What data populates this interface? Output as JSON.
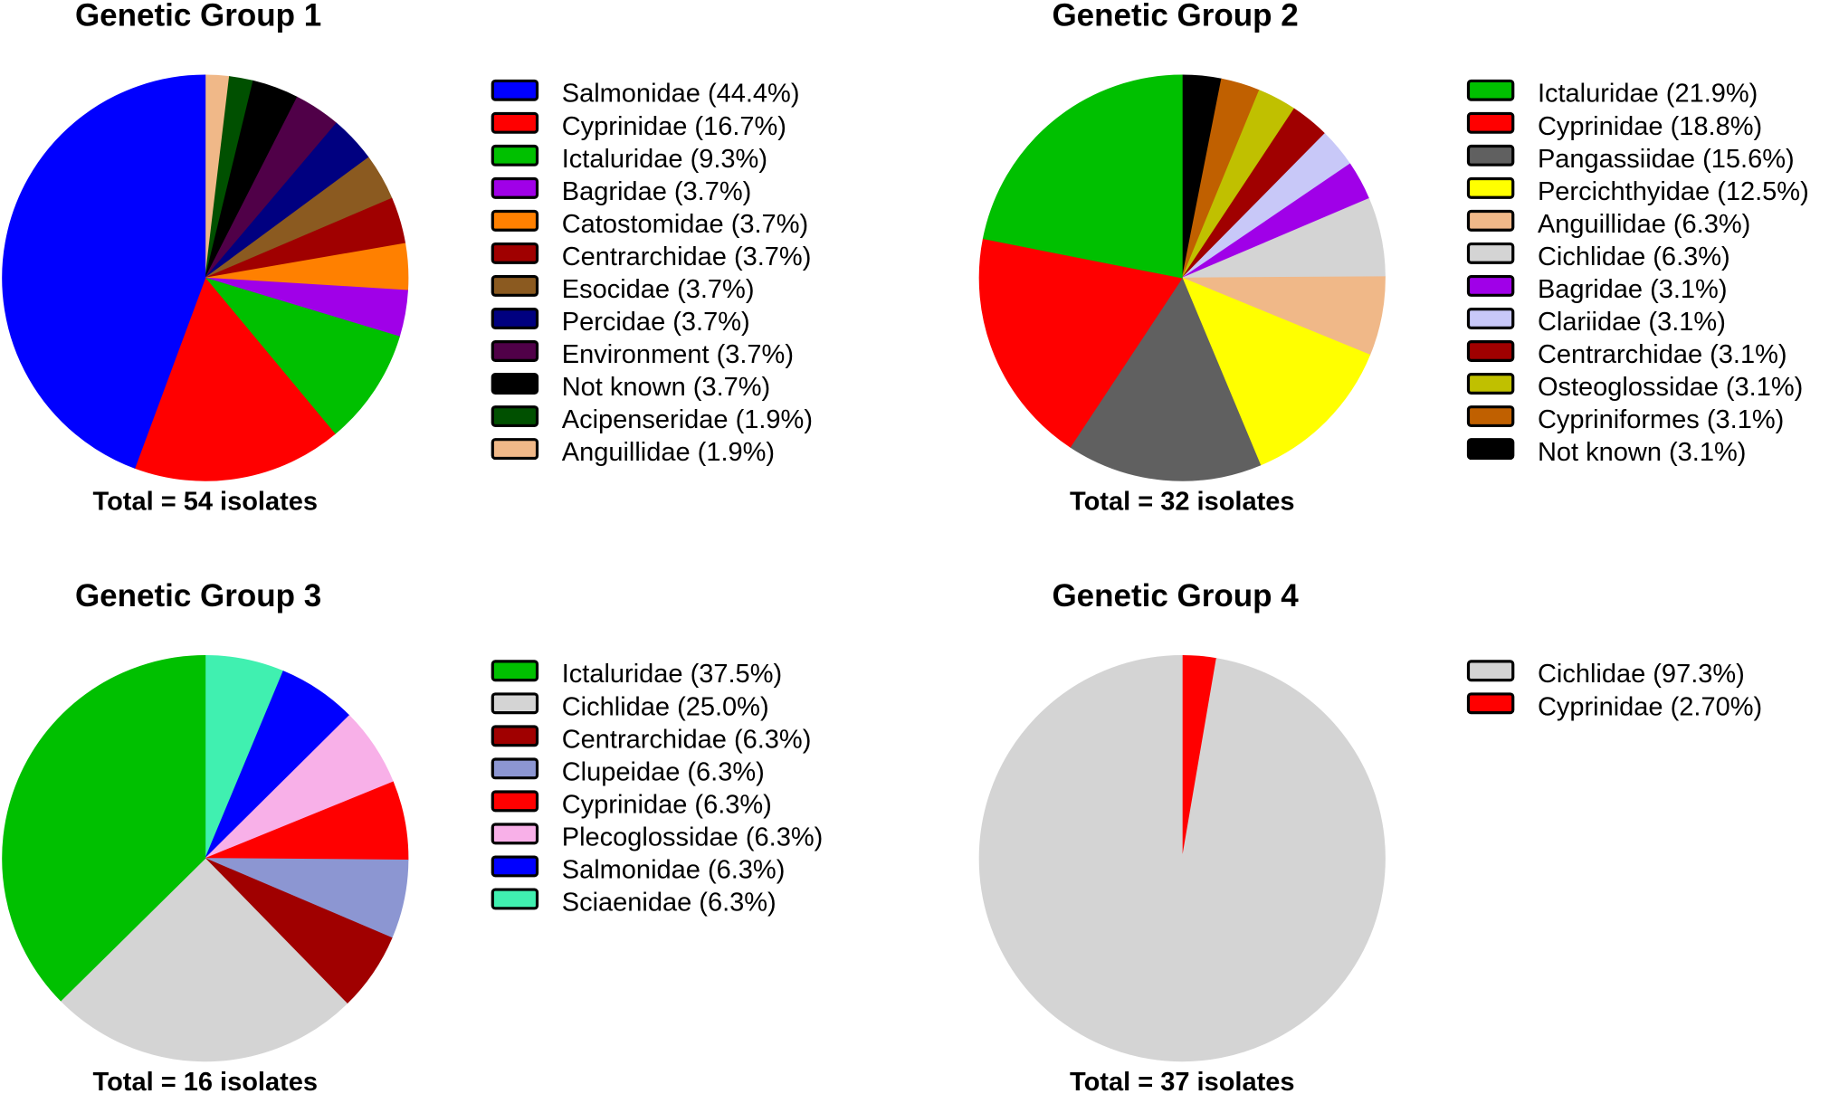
{
  "chart_data": [
    {
      "type": "pie",
      "title": "Genetic Group 1",
      "footer": "Total = 54 isolates",
      "slices": [
        {
          "name": "Salmonidae",
          "value": 44.4,
          "legend": "Salmonidae (44.4%)",
          "color": "#0000FF"
        },
        {
          "name": "Cyprinidae",
          "value": 16.7,
          "legend": "Cyprinidae (16.7%)",
          "color": "#FF0000"
        },
        {
          "name": "Ictaluridae",
          "value": 9.3,
          "legend": "Ictaluridae (9.3%)",
          "color": "#00C000"
        },
        {
          "name": "Bagridae",
          "value": 3.7,
          "legend": "Bagridae (3.7%)",
          "color": "#A000E8"
        },
        {
          "name": "Catostomidae",
          "value": 3.7,
          "legend": "Catostomidae (3.7%)",
          "color": "#FF8000"
        },
        {
          "name": "Centrarchidae",
          "value": 3.7,
          "legend": "Centrarchidae (3.7%)",
          "color": "#A00000"
        },
        {
          "name": "Esocidae",
          "value": 3.7,
          "legend": "Esocidae (3.7%)",
          "color": "#8B5A20"
        },
        {
          "name": "Percidae",
          "value": 3.7,
          "legend": "Percidae (3.7%)",
          "color": "#000080"
        },
        {
          "name": "Environment",
          "value": 3.7,
          "legend": "Environment (3.7%)",
          "color": "#500048"
        },
        {
          "name": "Not known",
          "value": 3.7,
          "legend": "Not known (3.7%)",
          "color": "#000000"
        },
        {
          "name": "Acipenseridae",
          "value": 1.9,
          "legend": "Acipenseridae (1.9%)",
          "color": "#005000"
        },
        {
          "name": "Anguillidae",
          "value": 1.9,
          "legend": "Anguillidae (1.9%)",
          "color": "#F0B888"
        }
      ]
    },
    {
      "type": "pie",
      "title": "Genetic Group 2",
      "footer": "Total = 32 isolates",
      "slices": [
        {
          "name": "Ictaluridae",
          "value": 21.9,
          "legend": "Ictaluridae (21.9%)",
          "color": "#00C000"
        },
        {
          "name": "Cyprinidae",
          "value": 18.8,
          "legend": "Cyprinidae (18.8%)",
          "color": "#FF0000"
        },
        {
          "name": "Pangassiidae",
          "value": 15.6,
          "legend": "Pangassiidae (15.6%)",
          "color": "#606060"
        },
        {
          "name": "Percichthyidae",
          "value": 12.5,
          "legend": "Percichthyidae (12.5%)",
          "color": "#FFFF00"
        },
        {
          "name": "Anguillidae",
          "value": 6.3,
          "legend": "Anguillidae (6.3%)",
          "color": "#F0B888"
        },
        {
          "name": "Cichlidae",
          "value": 6.3,
          "legend": "Cichlidae (6.3%)",
          "color": "#D4D4D4"
        },
        {
          "name": "Bagridae",
          "value": 3.1,
          "legend": "Bagridae (3.1%)",
          "color": "#A000E8"
        },
        {
          "name": "Clariidae",
          "value": 3.1,
          "legend": "Clariidae (3.1%)",
          "color": "#C8C8F8"
        },
        {
          "name": "Centrarchidae",
          "value": 3.1,
          "legend": "Centrarchidae (3.1%)",
          "color": "#A00000"
        },
        {
          "name": "Osteoglossidae",
          "value": 3.1,
          "legend": "Osteoglossidae (3.1%)",
          "color": "#C0C000"
        },
        {
          "name": "Cypriniformes",
          "value": 3.1,
          "legend": "Cypriniformes (3.1%)",
          "color": "#C06000"
        },
        {
          "name": "Not known",
          "value": 3.1,
          "legend": "Not known (3.1%)",
          "color": "#000000"
        }
      ]
    },
    {
      "type": "pie",
      "title": "Genetic Group 3",
      "footer": "Total = 16 isolates",
      "slices": [
        {
          "name": "Ictaluridae",
          "value": 37.5,
          "legend": "Ictaluridae (37.5%)",
          "color": "#00C000"
        },
        {
          "name": "Cichlidae",
          "value": 25.0,
          "legend": "Cichlidae (25.0%)",
          "color": "#D4D4D4"
        },
        {
          "name": "Centrarchidae",
          "value": 6.3,
          "legend": "Centrarchidae (6.3%)",
          "color": "#A00000"
        },
        {
          "name": "Clupeidae",
          "value": 6.3,
          "legend": "Clupeidae (6.3%)",
          "color": "#8C96D2"
        },
        {
          "name": "Cyprinidae",
          "value": 6.3,
          "legend": "Cyprinidae (6.3%)",
          "color": "#FF0000"
        },
        {
          "name": "Plecoglossidae",
          "value": 6.3,
          "legend": "Plecoglossidae (6.3%)",
          "color": "#F8B0E8"
        },
        {
          "name": "Salmonidae",
          "value": 6.3,
          "legend": "Salmonidae (6.3%)",
          "color": "#0000FF"
        },
        {
          "name": "Sciaenidae",
          "value": 6.3,
          "legend": "Sciaenidae (6.3%)",
          "color": "#40F0B0"
        }
      ]
    },
    {
      "type": "pie",
      "title": "Genetic Group 4",
      "footer": "Total = 37 isolates",
      "slices": [
        {
          "name": "Cichlidae",
          "value": 97.3,
          "legend": "Cichlidae (97.3%)",
          "color": "#D4D4D4"
        },
        {
          "name": "Cyprinidae",
          "value": 2.7,
          "legend": "Cyprinidae (2.70%)",
          "color": "#FF0000"
        }
      ]
    }
  ]
}
